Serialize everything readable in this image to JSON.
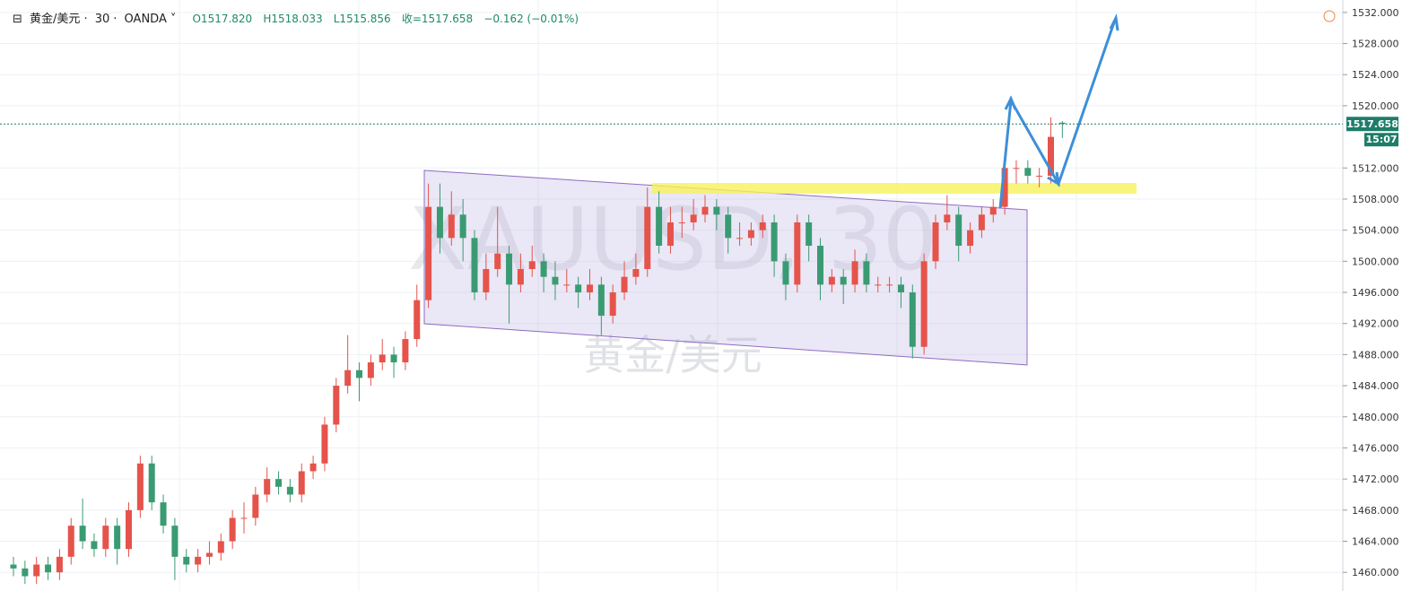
{
  "chart_data": {
    "type": "candlestick",
    "header": {
      "symbol": "黄金/美元",
      "interval": "30",
      "broker": "OANDA",
      "open": "O1517.820",
      "high": "H1518.033",
      "low": "L1515.856",
      "close": "收=1517.658",
      "change": "−0.162 (−0.01%)"
    },
    "watermark": {
      "ticker": "XAUUSD, 30",
      "name": "黄金/美元"
    },
    "price_tag": "1517.658",
    "countdown": "15:07",
    "up_color": "#e5534b",
    "down_color": "#3a9b73",
    "ylim": [
      1457.6,
      1533.6
    ],
    "yticks": [
      {
        "value": 1460,
        "label": "1460.000"
      },
      {
        "value": 1464,
        "label": "1464.000"
      },
      {
        "value": 1468,
        "label": "1468.000"
      },
      {
        "value": 1472,
        "label": "1472.000"
      },
      {
        "value": 1476,
        "label": "1476.000"
      },
      {
        "value": 1480,
        "label": "1480.000"
      },
      {
        "value": 1484,
        "label": "1484.000"
      },
      {
        "value": 1488,
        "label": "1488.000"
      },
      {
        "value": 1492,
        "label": "1492.000"
      },
      {
        "value": 1496,
        "label": "1496.000"
      },
      {
        "value": 1500,
        "label": "1500.000"
      },
      {
        "value": 1504,
        "label": "1504.000"
      },
      {
        "value": 1508,
        "label": "1508.000"
      },
      {
        "value": 1512,
        "label": "1512.000"
      },
      {
        "value": 1520,
        "label": "1520.000"
      },
      {
        "value": 1524,
        "label": "1524.000"
      },
      {
        "value": 1528,
        "label": "1528.000"
      },
      {
        "value": 1532,
        "label": "1532.000"
      }
    ],
    "grid": true,
    "candles": [
      [
        1461,
        1462,
        1459.5,
        1460.5
      ],
      [
        1460.5,
        1461.5,
        1458.5,
        1459.5
      ],
      [
        1459.5,
        1462,
        1458.5,
        1461
      ],
      [
        1461,
        1462,
        1459,
        1460
      ],
      [
        1460,
        1463,
        1459,
        1462
      ],
      [
        1462,
        1467,
        1461,
        1466
      ],
      [
        1466,
        1469.5,
        1463,
        1464
      ],
      [
        1464,
        1465,
        1462,
        1463
      ],
      [
        1463,
        1467,
        1462,
        1466
      ],
      [
        1466,
        1467,
        1461,
        1463
      ],
      [
        1463,
        1469,
        1462,
        1468
      ],
      [
        1468,
        1475,
        1467,
        1474
      ],
      [
        1474,
        1475,
        1468,
        1469
      ],
      [
        1469,
        1470,
        1465,
        1466
      ],
      [
        1466,
        1467,
        1459,
        1462
      ],
      [
        1462,
        1463,
        1460,
        1461
      ],
      [
        1461,
        1463,
        1460,
        1462
      ],
      [
        1462,
        1464,
        1461,
        1462.5
      ],
      [
        1462.5,
        1465,
        1461.5,
        1464
      ],
      [
        1464,
        1468,
        1463,
        1467
      ],
      [
        1467,
        1469,
        1465,
        1467
      ],
      [
        1467,
        1471,
        1466,
        1470
      ],
      [
        1470,
        1473.5,
        1469,
        1472
      ],
      [
        1472,
        1473,
        1470,
        1471
      ],
      [
        1471,
        1472,
        1469,
        1470
      ],
      [
        1470,
        1474,
        1469,
        1473
      ],
      [
        1473,
        1475,
        1472,
        1474
      ],
      [
        1474,
        1480,
        1473,
        1479
      ],
      [
        1479,
        1485,
        1478,
        1484
      ],
      [
        1484,
        1490.5,
        1483,
        1486
      ],
      [
        1486,
        1487,
        1482,
        1485
      ],
      [
        1485,
        1488,
        1484,
        1487
      ],
      [
        1487,
        1490,
        1486,
        1488
      ],
      [
        1488,
        1489,
        1485,
        1487
      ],
      [
        1487,
        1491,
        1486,
        1490
      ],
      [
        1490,
        1497,
        1489,
        1495
      ],
      [
        1495,
        1510,
        1494,
        1507
      ],
      [
        1507,
        1510,
        1501,
        1503
      ],
      [
        1503,
        1509,
        1502,
        1506
      ],
      [
        1506,
        1508,
        1500,
        1503
      ],
      [
        1503,
        1504,
        1495,
        1496
      ],
      [
        1496,
        1501,
        1495,
        1499
      ],
      [
        1499,
        1507,
        1498,
        1501
      ],
      [
        1501,
        1502,
        1492,
        1497
      ],
      [
        1497,
        1501,
        1496,
        1499
      ],
      [
        1499,
        1502,
        1498,
        1500
      ],
      [
        1500,
        1501,
        1496,
        1498
      ],
      [
        1498,
        1500,
        1495,
        1497
      ],
      [
        1497,
        1499,
        1496,
        1497
      ],
      [
        1497,
        1498,
        1494,
        1496
      ],
      [
        1496,
        1499,
        1495,
        1497
      ],
      [
        1497,
        1498,
        1490.5,
        1493
      ],
      [
        1493,
        1497,
        1492,
        1496
      ],
      [
        1496,
        1500,
        1495,
        1498
      ],
      [
        1498,
        1501,
        1497,
        1499
      ],
      [
        1499,
        1509.5,
        1498,
        1507
      ],
      [
        1507,
        1509,
        1501,
        1502
      ],
      [
        1502,
        1507,
        1501,
        1505
      ],
      [
        1505,
        1507,
        1503,
        1505
      ],
      [
        1505,
        1508,
        1504,
        1506
      ],
      [
        1506,
        1508.5,
        1505,
        1507
      ],
      [
        1507,
        1508,
        1504,
        1506
      ],
      [
        1506,
        1507,
        1501,
        1503
      ],
      [
        1503,
        1505,
        1502,
        1503
      ],
      [
        1503,
        1505,
        1502,
        1504
      ],
      [
        1504,
        1506,
        1503,
        1505
      ],
      [
        1505,
        1506,
        1498,
        1500
      ],
      [
        1500,
        1501,
        1495,
        1497
      ],
      [
        1497,
        1506,
        1496,
        1505
      ],
      [
        1505,
        1506,
        1500,
        1502
      ],
      [
        1502,
        1503,
        1495,
        1497
      ],
      [
        1497,
        1499,
        1496,
        1498
      ],
      [
        1498,
        1499,
        1494.5,
        1497
      ],
      [
        1497,
        1501.5,
        1496,
        1500
      ],
      [
        1500,
        1501,
        1496,
        1497
      ],
      [
        1497,
        1498,
        1496,
        1497
      ],
      [
        1497,
        1498,
        1496,
        1497
      ],
      [
        1497,
        1498,
        1494,
        1496
      ],
      [
        1496,
        1497,
        1487.5,
        1489
      ],
      [
        1489,
        1501,
        1488,
        1500
      ],
      [
        1500,
        1506,
        1499,
        1505
      ],
      [
        1505,
        1508.5,
        1504,
        1506
      ],
      [
        1506,
        1507,
        1500,
        1502
      ],
      [
        1502,
        1505,
        1501,
        1504
      ],
      [
        1504,
        1507,
        1503,
        1506
      ],
      [
        1506,
        1508,
        1505,
        1507
      ],
      [
        1507,
        1514,
        1506,
        1512
      ],
      [
        1512,
        1513,
        1510,
        1512
      ],
      [
        1512,
        1513,
        1510,
        1511
      ],
      [
        1511,
        1512,
        1509.5,
        1511
      ],
      [
        1511,
        1518.5,
        1510,
        1516
      ],
      [
        1517.82,
        1518.033,
        1515.856,
        1517.658
      ]
    ]
  }
}
